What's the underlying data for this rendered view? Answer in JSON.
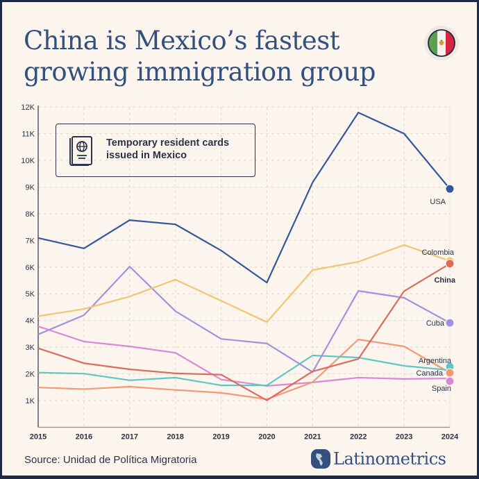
{
  "header": {
    "title": "China is Mexico’s fastest\ngrowing immigration group",
    "flag_icon": "mexico-flag-icon"
  },
  "legend": {
    "icon": "passport-icon",
    "text": "Temporary resident cards issued in Mexico"
  },
  "footer": {
    "source": "Source: Unidad de Política Migratoria",
    "brand": "Latinometrics",
    "brand_icon": "americas-globe-icon"
  },
  "colors": {
    "background": "#fbf5ee",
    "frame": "#1f2a44",
    "title": "#34507f",
    "text": "#2c3347",
    "grid": "#e2d9cf"
  },
  "chart_data": {
    "type": "line",
    "title": "Temporary resident cards issued in Mexico",
    "xlabel": "",
    "ylabel": "",
    "x": [
      2015,
      2016,
      2017,
      2018,
      2019,
      2020,
      2021,
      2022,
      2023,
      2024
    ],
    "x_tick_labels": [
      "2015",
      "2016",
      "2017",
      "2018",
      "2019",
      "2020",
      "2021",
      "2022",
      "2023",
      "2024"
    ],
    "ylim": [
      0,
      12000
    ],
    "y_ticks": [
      1000,
      2000,
      3000,
      4000,
      5000,
      6000,
      7000,
      8000,
      9000,
      10000,
      11000,
      12000
    ],
    "y_tick_labels": [
      "1K",
      "2K",
      "3K",
      "4K",
      "5K",
      "6K",
      "7K",
      "8K",
      "9K",
      "10K",
      "11K",
      "12K"
    ],
    "grid": true,
    "legend_placement": "end-of-line labels",
    "series": [
      {
        "name": "USA",
        "color": "#34569a",
        "flag": "usa-flag-icon",
        "bold": false,
        "values": [
          7090,
          6700,
          7760,
          7600,
          6620,
          5420,
          9170,
          11790,
          11000,
          8930
        ]
      },
      {
        "name": "Colombia",
        "color": "#f2c56e",
        "flag": "colombia-flag-icon",
        "bold": false,
        "values": [
          4160,
          4430,
          4900,
          5530,
          4740,
          3940,
          5890,
          6200,
          6830,
          6230
        ]
      },
      {
        "name": "China",
        "color": "#de6b5a",
        "flag": "china-flag-icon",
        "bold": true,
        "values": [
          2960,
          2400,
          2170,
          2020,
          1970,
          1010,
          2090,
          2560,
          5100,
          6130
        ]
      },
      {
        "name": "Cuba",
        "color": "#a88ee0",
        "flag": "cuba-flag-icon",
        "bold": false,
        "values": [
          3480,
          4200,
          6020,
          4350,
          3310,
          3140,
          2070,
          5110,
          4850,
          3910
        ]
      },
      {
        "name": "Argentina",
        "color": "#5fc6c8",
        "flag": "argentina-flag-icon",
        "bold": false,
        "values": [
          2050,
          2010,
          1760,
          1860,
          1570,
          1570,
          2690,
          2610,
          2300,
          2140
        ]
      },
      {
        "name": "Canada",
        "color": "#f29a74",
        "flag": "canada-flag-icon",
        "bold": false,
        "values": [
          1490,
          1430,
          1520,
          1400,
          1290,
          1050,
          1690,
          3290,
          3030,
          2040
        ]
      },
      {
        "name": "Spain",
        "color": "#d98ad6",
        "flag": "spain-flag-icon",
        "bold": false,
        "values": [
          3780,
          3210,
          3030,
          2790,
          1790,
          1550,
          1680,
          1860,
          1810,
          1830
        ]
      }
    ]
  }
}
